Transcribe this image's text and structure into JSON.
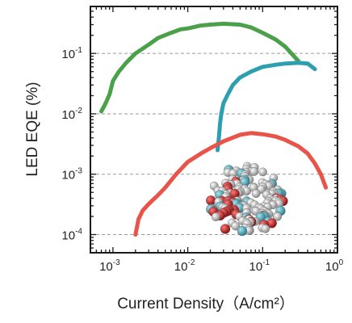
{
  "chart_data": {
    "type": "line",
    "xscale": "log",
    "yscale": "log",
    "xlabel": "Current Density（A/cm²）",
    "ylabel": "LED EQE (%)",
    "xlim": [
      0.0005,
      1
    ],
    "ylim": [
      5e-05,
      0.6
    ],
    "x_ticks": [
      {
        "value": 0.001,
        "base": "10",
        "exp": "-3"
      },
      {
        "value": 0.01,
        "base": "10",
        "exp": "-2"
      },
      {
        "value": 0.1,
        "base": "10",
        "exp": "-1"
      },
      {
        "value": 1,
        "base": "10",
        "exp": "0"
      }
    ],
    "y_ticks": [
      {
        "value": 0.0001,
        "base": "10",
        "exp": "-4"
      },
      {
        "value": 0.001,
        "base": "10",
        "exp": "-3"
      },
      {
        "value": 0.01,
        "base": "10",
        "exp": "-2"
      },
      {
        "value": 0.1,
        "base": "10",
        "exp": "-1"
      }
    ],
    "grid": "dashed horizontal at decades",
    "series": [
      {
        "color": "#4aa14a",
        "x": [
          0.0007,
          0.0008,
          0.0009,
          0.001,
          0.0012,
          0.0015,
          0.002,
          0.003,
          0.004,
          0.006,
          0.008,
          0.01,
          0.015,
          0.02,
          0.03,
          0.05,
          0.07,
          0.1,
          0.15,
          0.2,
          0.3
        ],
        "y": [
          0.011,
          0.015,
          0.021,
          0.035,
          0.05,
          0.07,
          0.1,
          0.14,
          0.18,
          0.22,
          0.25,
          0.26,
          0.29,
          0.3,
          0.31,
          0.3,
          0.27,
          0.22,
          0.17,
          0.13,
          0.075
        ]
      },
      {
        "color": "#2e9fb0",
        "x": [
          0.025,
          0.026,
          0.027,
          0.028,
          0.03,
          0.035,
          0.04,
          0.05,
          0.07,
          0.1,
          0.15,
          0.2,
          0.3,
          0.4,
          0.5
        ],
        "y": [
          0.0025,
          0.004,
          0.007,
          0.01,
          0.015,
          0.022,
          0.03,
          0.04,
          0.05,
          0.06,
          0.065,
          0.068,
          0.07,
          0.068,
          0.055
        ]
      },
      {
        "color": "#e8534a",
        "x": [
          0.002,
          0.0022,
          0.0025,
          0.003,
          0.004,
          0.005,
          0.007,
          0.01,
          0.015,
          0.02,
          0.03,
          0.05,
          0.07,
          0.1,
          0.15,
          0.2,
          0.3,
          0.4,
          0.5,
          0.6,
          0.7
        ],
        "y": [
          0.0001,
          0.00018,
          0.00025,
          0.00032,
          0.00045,
          0.0006,
          0.001,
          0.0016,
          0.0022,
          0.0027,
          0.0035,
          0.0045,
          0.0048,
          0.0046,
          0.0042,
          0.0037,
          0.0029,
          0.0022,
          0.0015,
          0.001,
          0.0006
        ]
      }
    ],
    "inset": {
      "name": "molecular-cluster-inset"
    }
  }
}
